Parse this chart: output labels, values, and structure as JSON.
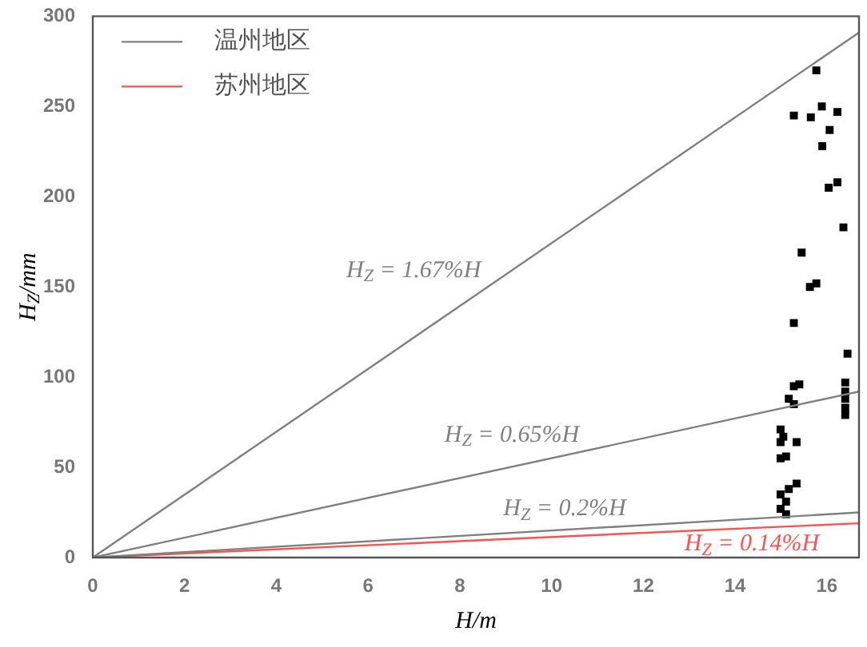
{
  "chart_data": {
    "type": "scatter",
    "xlabel": "H/m",
    "ylabel": "H$_{Z}$/mm",
    "xlim": [
      0,
      16.7
    ],
    "xticks": [
      0,
      2,
      4,
      6,
      8,
      10,
      12,
      14,
      16
    ],
    "ylim": [
      0,
      300
    ],
    "yticks": [
      0,
      50,
      100,
      150,
      200,
      250,
      300
    ],
    "grid": false,
    "legend": "top left",
    "series": [
      {
        "name": "温州地区",
        "type": "line",
        "color": "#808080",
        "x": [
          0,
          16.7
        ],
        "values": [
          0,
          291
        ]
      },
      {
        "type": "line",
        "color": "#808080",
        "x": [
          0,
          16.7
        ],
        "values": [
          0,
          92
        ]
      },
      {
        "type": "line",
        "color": "#808080",
        "x": [
          0,
          16.7
        ],
        "values": [
          0,
          25
        ]
      },
      {
        "name": "苏州地区",
        "type": "line",
        "color": "#ff5050",
        "x": [
          0,
          16.7
        ],
        "values": [
          0,
          19
        ]
      },
      {
        "color": "#000000",
        "marker": "square",
        "x": [
          15.77,
          15.28,
          15.65,
          15.89,
          16.23,
          16.06,
          15.9,
          16.04,
          16.23,
          16.36,
          15.45,
          15.63,
          15.77,
          15.28,
          16.45,
          16.4,
          16.4,
          16.4,
          16.4,
          16.4,
          15.4,
          15.28,
          15.17,
          15.28,
          14.99,
          15.05,
          15.34,
          14.99,
          15.11,
          14.99,
          15.34,
          15.17,
          14.99,
          15.11,
          14.99,
          15.11
        ],
        "values": [
          270,
          245,
          244,
          250,
          247,
          237,
          228,
          205,
          208,
          183,
          169,
          150,
          152,
          130,
          113,
          97,
          92,
          88,
          83,
          79,
          96,
          95,
          88,
          85,
          71,
          67,
          64,
          64,
          56,
          55,
          41,
          38,
          35,
          31,
          27,
          24
        ]
      }
    ],
    "annotations": [
      {
        "text": "H$_{Z}$ = 1.67%H",
        "x": 8.6,
        "y": 150
      },
      {
        "text": "H$_{Z}$ = 0.65%H",
        "x": 10.74,
        "y": 59
      },
      {
        "text": "H$_{Z}$ = 0.2%H",
        "x": 11.76,
        "y": 18
      },
      {
        "text": "H$_{Z}$ = 0.14%H",
        "x": 15.97,
        "y": 18
      }
    ]
  }
}
